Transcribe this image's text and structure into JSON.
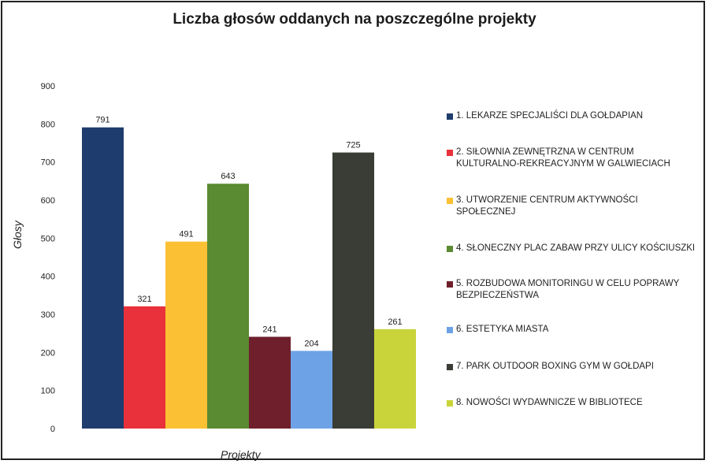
{
  "chart_data": {
    "type": "bar",
    "title": "Liczba głosów oddanych na poszczególne projekty",
    "xlabel": "Projekty",
    "ylabel": "Głosy",
    "ylim": [
      0,
      900
    ],
    "yticks": [
      "0",
      "100",
      "200",
      "300",
      "400",
      "500",
      "600",
      "700",
      "800",
      "900"
    ],
    "grid": false,
    "legend_position": "right",
    "series": [
      {
        "name": "1. LEKARZE SPECJALIŚCI DLA GOŁDAPIAN",
        "value": 791,
        "color": "#1f3c6e"
      },
      {
        "name": "2. SIŁOWNIA ZEWNĘTRZNA W CENTRUM KULTURALNO-REKREACYJNYM W GALWIECIACH",
        "value": 321,
        "color": "#e8313a"
      },
      {
        "name": "3. UTWORZENIE CENTRUM AKTYWNOŚCI SPOŁECZNEJ",
        "value": 491,
        "color": "#fbc034"
      },
      {
        "name": "4. SŁONECZNY PLAC ZABAW PRZY ULICY KOŚCIUSZKI",
        "value": 643,
        "color": "#5a8a32"
      },
      {
        "name": "5. ROZBUDOWA MONITORINGU W CELU POPRAWY BEZPIECZEŃSTWA",
        "value": 241,
        "color": "#6e1f2b"
      },
      {
        "name": "6. ESTETYKA MIASTA",
        "value": 204,
        "color": "#6da3e6"
      },
      {
        "name": "7. PARK OUTDOOR BOXING GYM W GOŁDAPI",
        "value": 725,
        "color": "#3a3d35"
      },
      {
        "name": "8. NOWOŚCI WYDAWNICZE W BIBLIOTECE",
        "value": 261,
        "color": "#c9d43a"
      }
    ]
  }
}
